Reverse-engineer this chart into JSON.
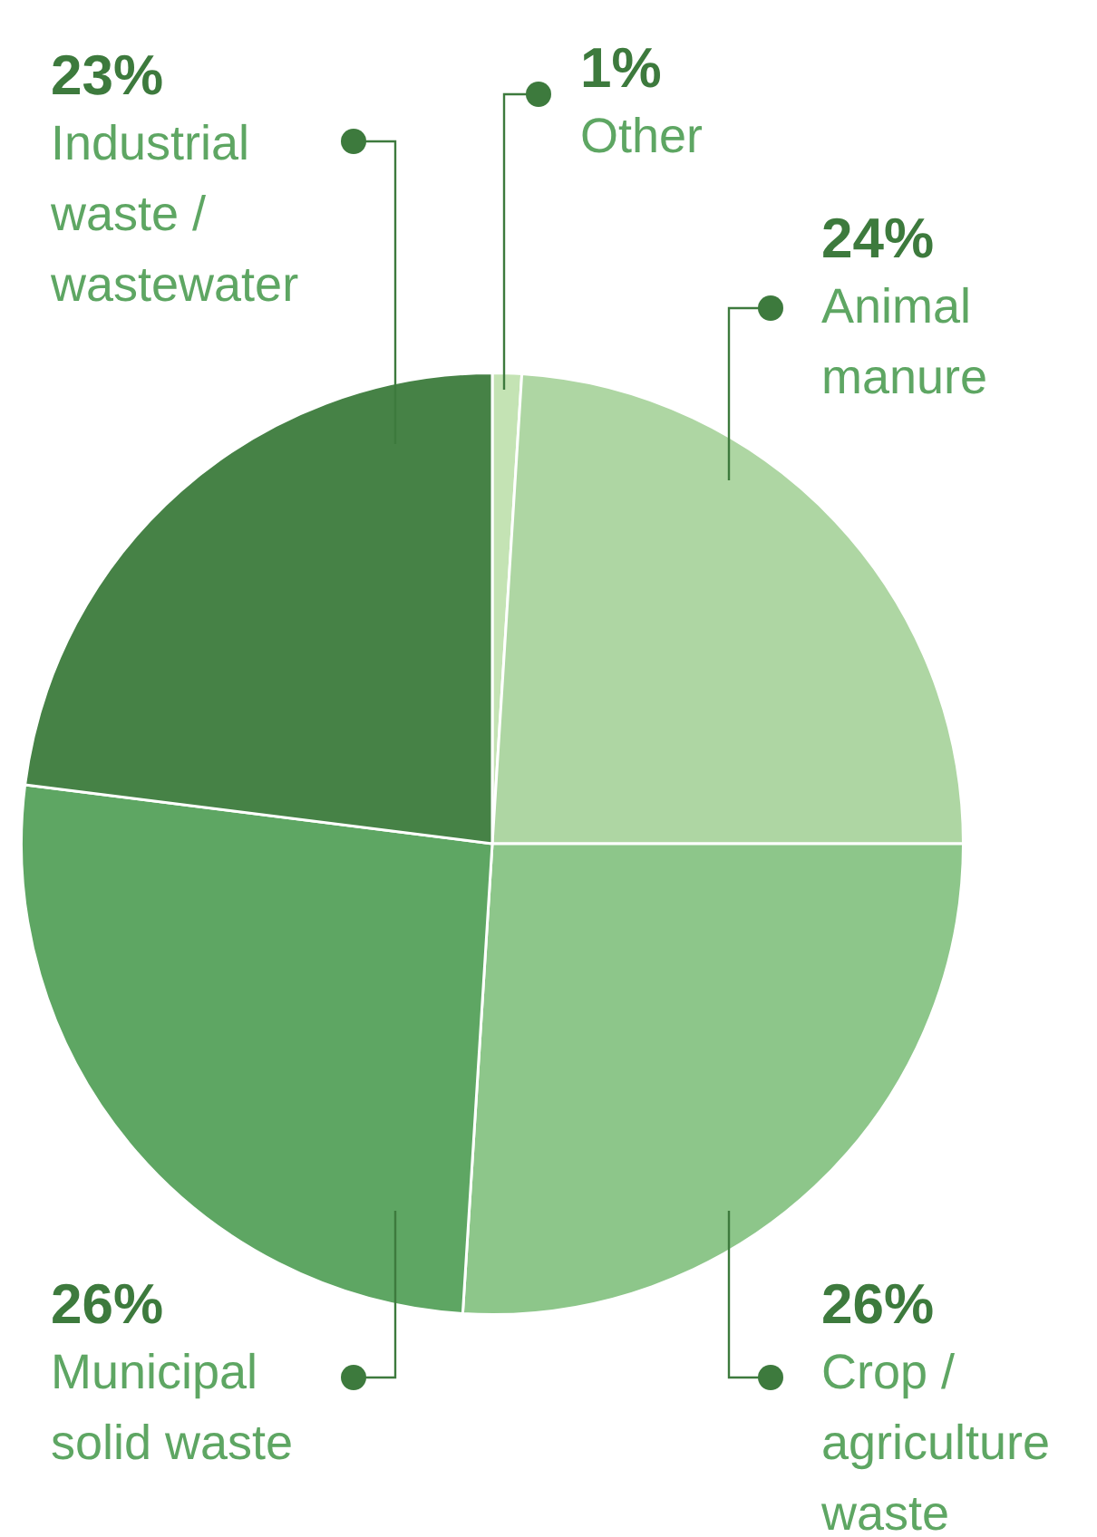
{
  "chart_data": {
    "type": "pie",
    "categories": [
      "Other",
      "Animal manure",
      "Crop / agriculture waste",
      "Municipal solid waste",
      "Industrial waste / wastewater"
    ],
    "values": [
      1,
      24,
      26,
      26,
      23
    ],
    "value_labels": [
      "1%",
      "24%",
      "26%",
      "26%",
      "23%"
    ],
    "colors": [
      "#c4e3b4",
      "#aed6a3",
      "#8dc68a",
      "#5ea663",
      "#468246"
    ],
    "legend": false
  }
}
